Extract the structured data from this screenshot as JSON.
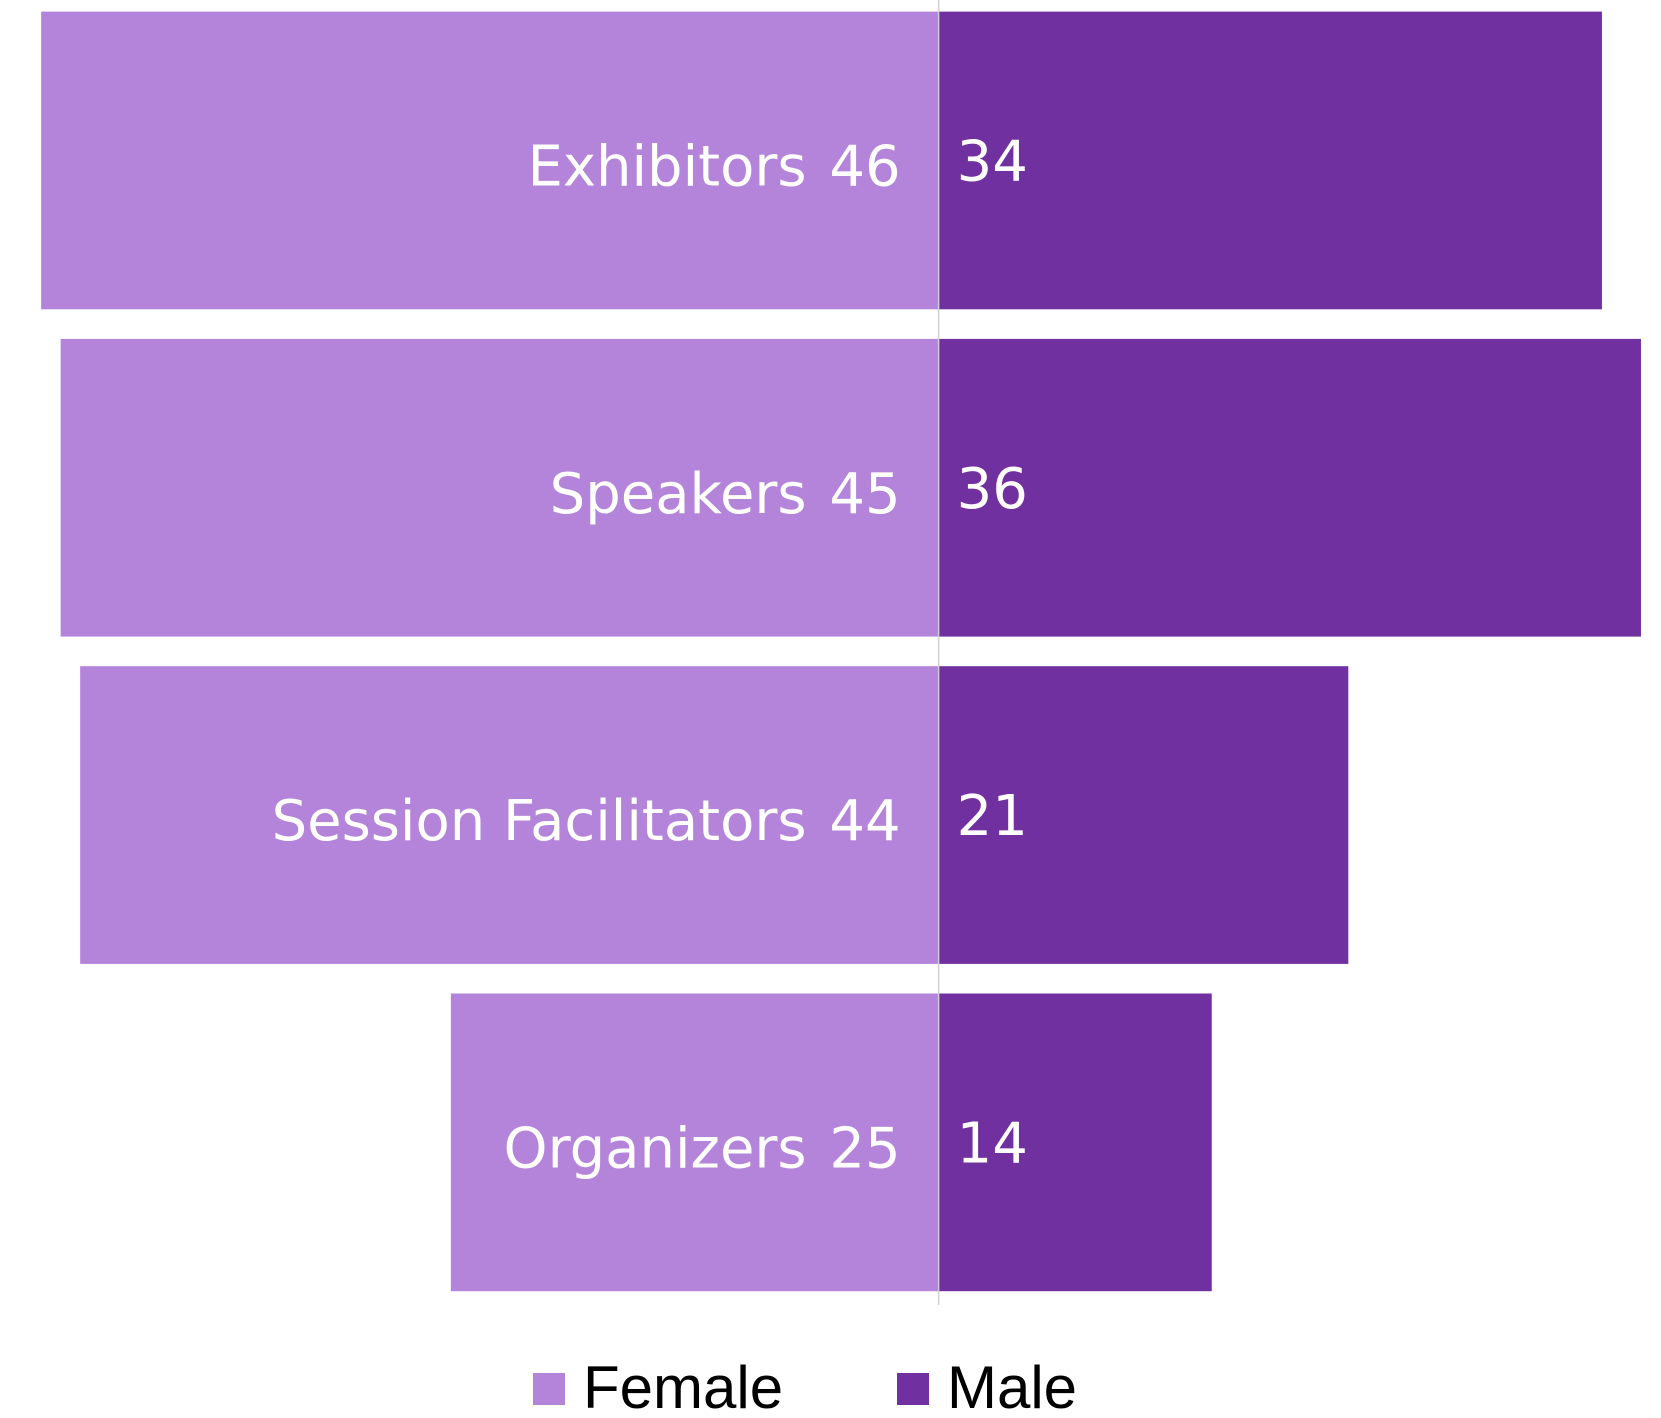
{
  "chart_data": {
    "type": "butterfly_bar",
    "categories": [
      "Exhibitors",
      "Speakers",
      "Session Facilitators",
      "Organizers"
    ],
    "series": [
      {
        "name": "Female",
        "color": "#b384da",
        "values": [
          46,
          45,
          44,
          25
        ]
      },
      {
        "name": "Male",
        "color": "#7030a0",
        "values": [
          34,
          36,
          21,
          14
        ]
      }
    ],
    "legend": "bottom"
  }
}
